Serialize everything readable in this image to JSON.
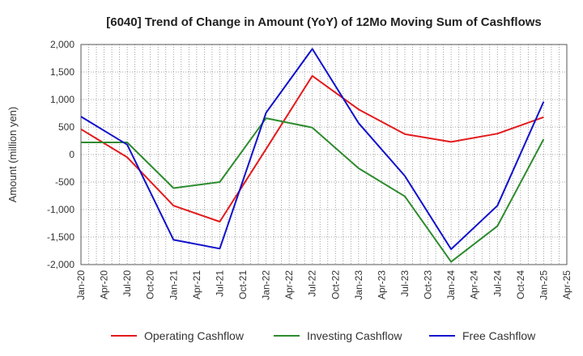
{
  "chart_data": {
    "type": "line",
    "title": "[6040]  Trend of Change in Amount (YoY) of 12Mo Moving Sum of Cashflows",
    "xlabel": "",
    "ylabel": "Amount (million yen)",
    "ylim": [
      -2000,
      2000
    ],
    "yticks": [
      2000,
      1500,
      1000,
      500,
      0,
      -500,
      -1000,
      -1500,
      -2000
    ],
    "ytick_labels": [
      "2,000",
      "1,500",
      "1,000",
      "500",
      "0",
      "-500",
      "-1,000",
      "-1,500",
      "-2,000"
    ],
    "categories": [
      "Jan-20",
      "Apr-20",
      "Jul-20",
      "Oct-20",
      "Jan-21",
      "Apr-21",
      "Jul-21",
      "Oct-21",
      "Jan-22",
      "Apr-22",
      "Jul-22",
      "Oct-22",
      "Jan-23",
      "Apr-23",
      "Jul-23",
      "Oct-23",
      "Jan-24",
      "Apr-24",
      "Jul-24",
      "Oct-24",
      "Jan-25",
      "Apr-25"
    ],
    "grid": true,
    "legend_position": "bottom",
    "series": [
      {
        "name": "Operating Cashflow",
        "color": "#e31a1c",
        "points": [
          [
            0,
            460
          ],
          [
            2,
            -50
          ],
          [
            4,
            -930
          ],
          [
            6,
            -1220
          ],
          [
            8,
            100
          ],
          [
            10,
            1430
          ],
          [
            12,
            820
          ],
          [
            14,
            370
          ],
          [
            16,
            230
          ],
          [
            18,
            380
          ],
          [
            20,
            680
          ]
        ]
      },
      {
        "name": "Investing Cashflow",
        "color": "#2e8b2e",
        "points": [
          [
            0,
            220
          ],
          [
            2,
            220
          ],
          [
            4,
            -610
          ],
          [
            6,
            -500
          ],
          [
            8,
            660
          ],
          [
            10,
            490
          ],
          [
            12,
            -250
          ],
          [
            14,
            -760
          ],
          [
            16,
            -1950
          ],
          [
            18,
            -1300
          ],
          [
            20,
            280
          ]
        ]
      },
      {
        "name": "Free Cashflow",
        "color": "#1010cc",
        "points": [
          [
            0,
            690
          ],
          [
            2,
            180
          ],
          [
            4,
            -1550
          ],
          [
            6,
            -1710
          ],
          [
            8,
            760
          ],
          [
            10,
            1920
          ],
          [
            12,
            570
          ],
          [
            14,
            -390
          ],
          [
            16,
            -1720
          ],
          [
            18,
            -930
          ],
          [
            20,
            960
          ]
        ]
      }
    ]
  }
}
